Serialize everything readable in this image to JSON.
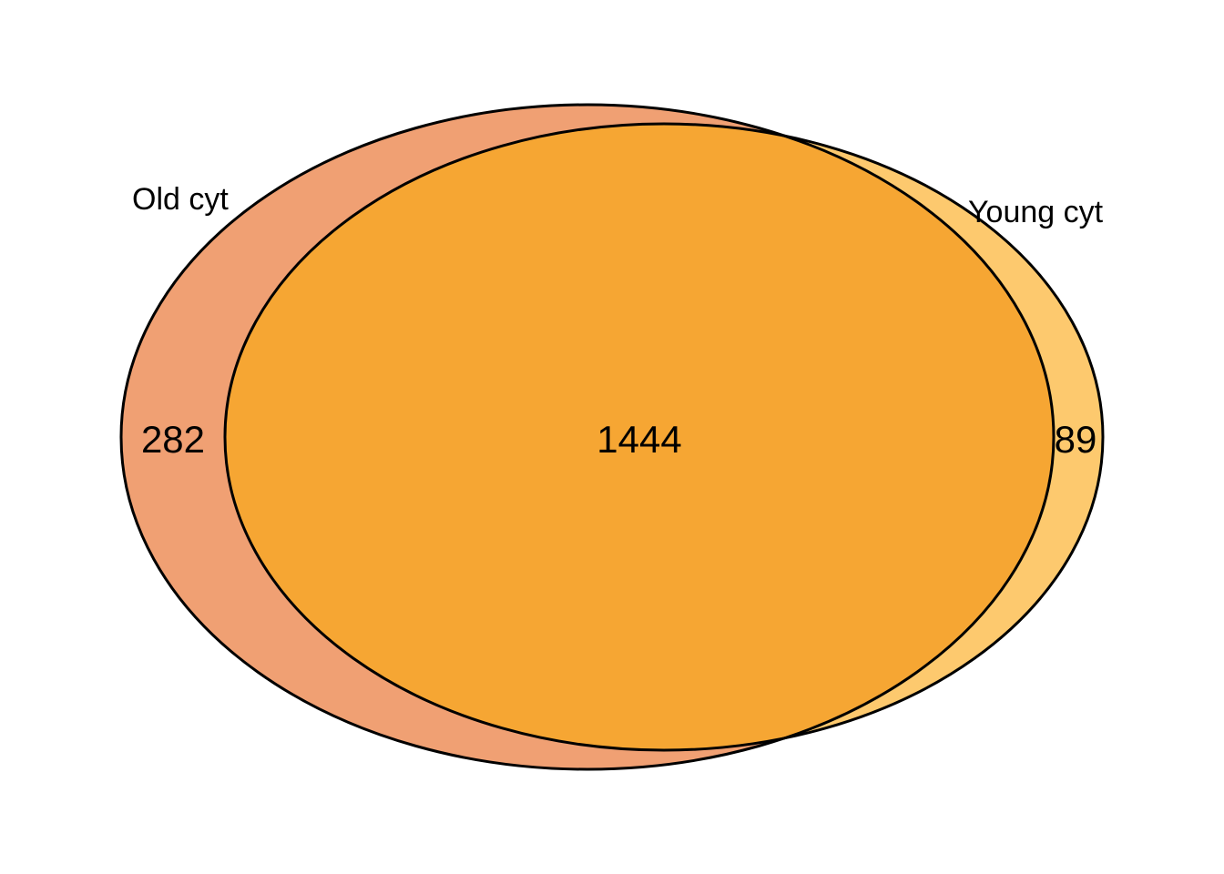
{
  "diagram": {
    "type": "venn",
    "sets": [
      {
        "name": "Old cyt",
        "color": "#f0a073"
      },
      {
        "name": "Young cyt",
        "color": "#fdc96e"
      }
    ],
    "intersection_color": "#f6a633",
    "outline_color": "#000000",
    "counts": {
      "old_only": "282",
      "both": "1444",
      "young_only": "89"
    }
  }
}
